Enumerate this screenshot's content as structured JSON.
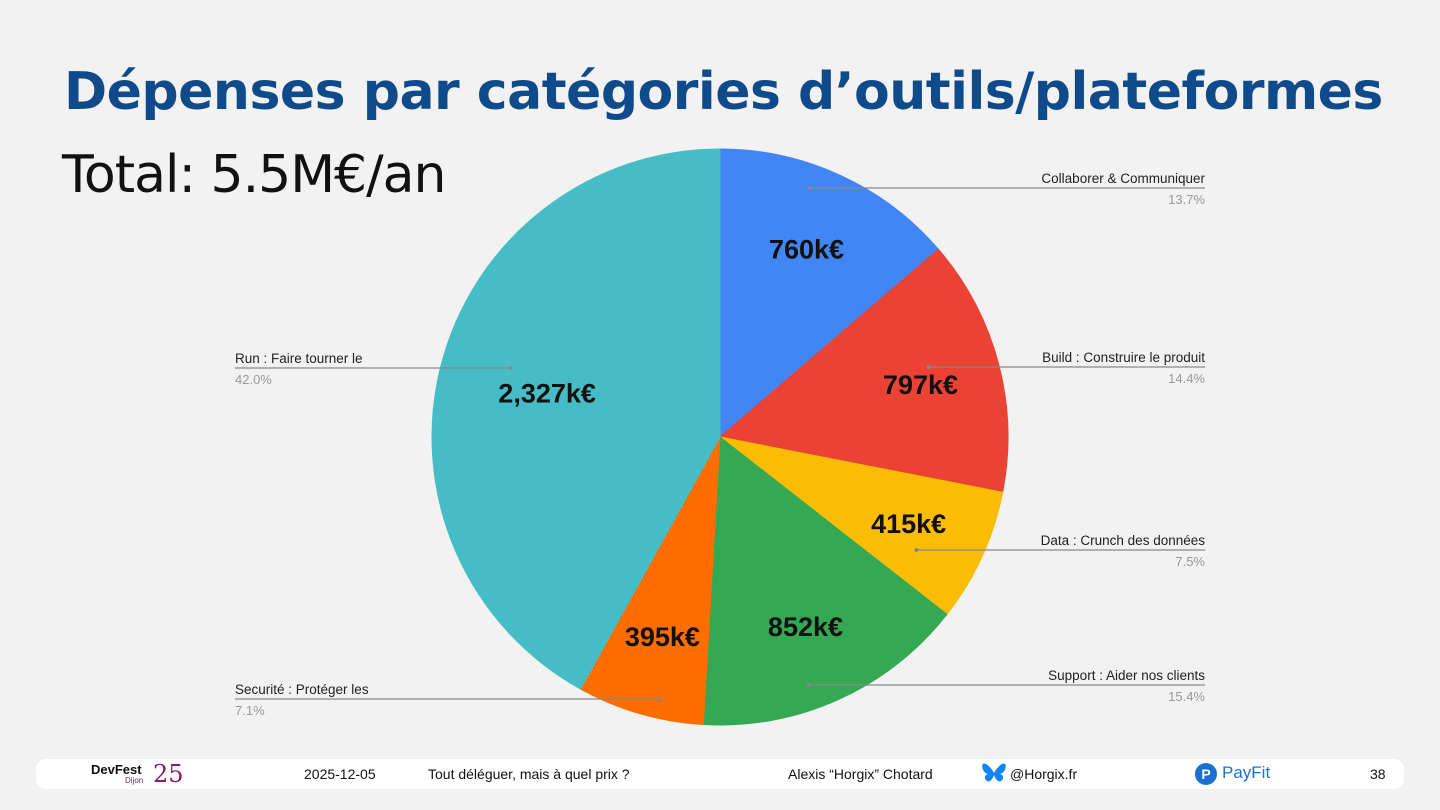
{
  "slide": {
    "title": "Dépenses par catégories d’outils/plateformes",
    "total": "Total: 5.5M€/an"
  },
  "chart_data": {
    "type": "pie",
    "title": "Dépenses par catégories d’outils/plateformes",
    "start": "12 o'clock, clockwise",
    "slices": [
      {
        "label": "Collaborer & Communiquer",
        "value": 760,
        "value_label": "760k€",
        "percent": "13.7%",
        "color": "#4285f4"
      },
      {
        "label": "Build : Construire le produit",
        "value": 797,
        "value_label": "797k€",
        "percent": "14.4%",
        "color": "#ea4335"
      },
      {
        "label": "Data : Crunch des données",
        "value": 415,
        "value_label": "415k€",
        "percent": "7.5%",
        "color": "#fbbc04"
      },
      {
        "label": "Support : Aider nos clients",
        "value": 852,
        "value_label": "852k€",
        "percent": "15.4%",
        "color": "#34a853"
      },
      {
        "label": "Securité : Protéger les",
        "value": 395,
        "value_label": "395k€",
        "percent": "7.1%",
        "color": "#ff6d01"
      },
      {
        "label": "Run : Faire tourner le",
        "value": 2327,
        "value_label": "2,327k€",
        "percent": "42.0%",
        "color": "#46bdc6"
      }
    ]
  },
  "footer": {
    "event_brand": "DevFest",
    "event_city": "Dijon",
    "event_year": "25",
    "date": "2025-12-05",
    "talk_title": "Tout déléguer, mais à quel prix ?",
    "speaker": "Alexis “Horgix” Chotard",
    "handle": "@Horgix.fr",
    "company": "PayFit",
    "page_number": "38",
    "bluesky_color": "#1185fe",
    "payfit_color": "#1c6fd1"
  }
}
